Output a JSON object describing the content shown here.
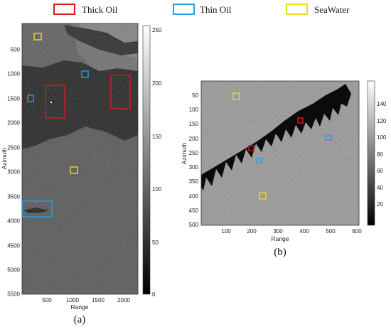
{
  "legend": [
    {
      "label": "Thick Oil",
      "color": "#e0161e"
    },
    {
      "label": "Thin Oil",
      "color": "#1aa5e6"
    },
    {
      "label": "SeaWater",
      "color": "#e6df1a"
    }
  ],
  "panel_a": {
    "caption": "(a)",
    "ylabel": "Azimuth",
    "xlabel": "Range",
    "xticks": [
      "500",
      "1000",
      "1500",
      "2000"
    ],
    "yticks": [
      "500",
      "1000",
      "1500",
      "2000",
      "2500",
      "3000",
      "3500",
      "4000",
      "4500",
      "5000",
      "5500"
    ],
    "colorbar_ticks": [
      "250",
      "200",
      "150",
      "100",
      "50",
      "0"
    ]
  },
  "panel_b": {
    "caption": "(b)",
    "ylabel": "Azimuth",
    "xlabel": "Range",
    "xticks": [
      "100",
      "200",
      "300",
      "400",
      "500",
      "600"
    ],
    "yticks": [
      "50",
      "100",
      "150",
      "200",
      "250",
      "300",
      "350",
      "400",
      "450",
      "500"
    ],
    "colorbar_ticks": [
      "140",
      "120",
      "100",
      "80",
      "60",
      "40",
      "20"
    ]
  }
}
